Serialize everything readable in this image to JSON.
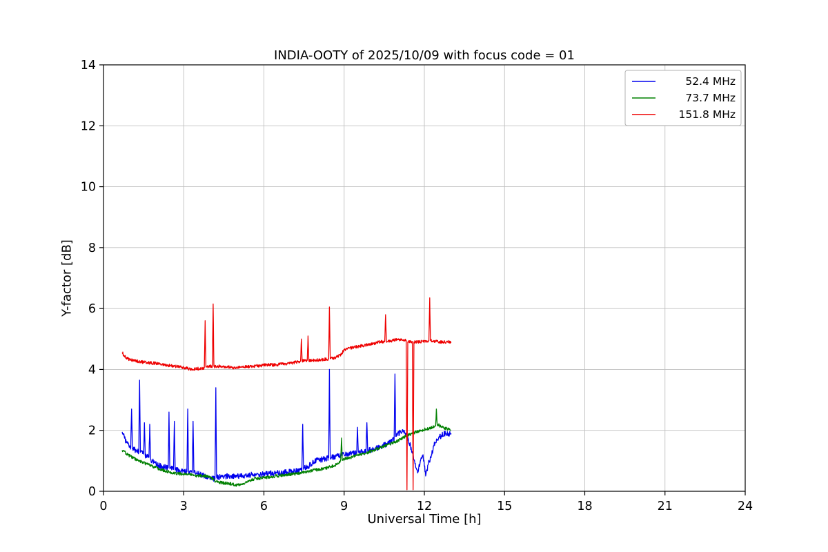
{
  "chart_data": {
    "type": "line",
    "title": "INDIA-OOTY of 2025/10/09 with focus code = 01",
    "xlabel": "Universal Time [h]",
    "ylabel": "Y-factor [dB]",
    "xlim": [
      0,
      24
    ],
    "ylim": [
      0,
      14
    ],
    "xticks": [
      0,
      3,
      6,
      9,
      12,
      15,
      18,
      21,
      24
    ],
    "yticks": [
      0,
      2,
      4,
      6,
      8,
      10,
      12,
      14
    ],
    "grid": true,
    "grid_color": "#c0c0c0",
    "axis_color": "#000000",
    "legend": {
      "position": "top-right",
      "border_color": "#b0b0b0",
      "background": "#ffffff"
    },
    "series": [
      {
        "name": "52.4 MHz",
        "color": "#0000ee",
        "noise": 0.09,
        "points": [
          [
            0.7,
            1.95
          ],
          [
            0.75,
            1.85
          ],
          [
            0.85,
            1.6
          ],
          [
            0.95,
            1.5
          ],
          [
            1.02,
            1.45
          ],
          [
            1.05,
            2.7
          ],
          [
            1.08,
            1.4
          ],
          [
            1.2,
            1.35
          ],
          [
            1.32,
            1.3
          ],
          [
            1.35,
            3.65
          ],
          [
            1.38,
            1.28
          ],
          [
            1.5,
            1.22
          ],
          [
            1.53,
            2.25
          ],
          [
            1.56,
            1.18
          ],
          [
            1.7,
            1.12
          ],
          [
            1.73,
            2.2
          ],
          [
            1.76,
            1.05
          ],
          [
            1.9,
            0.95
          ],
          [
            2.05,
            0.85
          ],
          [
            2.2,
            0.8
          ],
          [
            2.42,
            0.78
          ],
          [
            2.45,
            2.6
          ],
          [
            2.48,
            0.75
          ],
          [
            2.62,
            0.72
          ],
          [
            2.65,
            2.3
          ],
          [
            2.68,
            0.7
          ],
          [
            2.85,
            0.68
          ],
          [
            3.0,
            0.65
          ],
          [
            3.12,
            0.65
          ],
          [
            3.15,
            2.7
          ],
          [
            3.18,
            0.63
          ],
          [
            3.32,
            0.62
          ],
          [
            3.35,
            2.3
          ],
          [
            3.38,
            0.6
          ],
          [
            3.55,
            0.58
          ],
          [
            3.75,
            0.52
          ],
          [
            3.95,
            0.48
          ],
          [
            4.1,
            0.42
          ],
          [
            4.17,
            0.42
          ],
          [
            4.2,
            3.4
          ],
          [
            4.23,
            0.45
          ],
          [
            4.4,
            0.48
          ],
          [
            4.7,
            0.5
          ],
          [
            5.0,
            0.5
          ],
          [
            5.3,
            0.52
          ],
          [
            5.6,
            0.55
          ],
          [
            5.9,
            0.55
          ],
          [
            6.2,
            0.58
          ],
          [
            6.5,
            0.6
          ],
          [
            6.8,
            0.62
          ],
          [
            7.1,
            0.65
          ],
          [
            7.42,
            0.7
          ],
          [
            7.45,
            2.2
          ],
          [
            7.48,
            0.75
          ],
          [
            7.7,
            0.85
          ],
          [
            7.95,
            1.0
          ],
          [
            8.2,
            1.05
          ],
          [
            8.42,
            1.1
          ],
          [
            8.45,
            4.0
          ],
          [
            8.48,
            1.1
          ],
          [
            8.7,
            1.15
          ],
          [
            9.0,
            1.2
          ],
          [
            9.25,
            1.25
          ],
          [
            9.47,
            1.28
          ],
          [
            9.5,
            2.1
          ],
          [
            9.53,
            1.28
          ],
          [
            9.7,
            1.3
          ],
          [
            9.82,
            1.32
          ],
          [
            9.85,
            2.25
          ],
          [
            9.88,
            1.32
          ],
          [
            10.1,
            1.4
          ],
          [
            10.35,
            1.45
          ],
          [
            10.6,
            1.55
          ],
          [
            10.87,
            1.7
          ],
          [
            10.9,
            3.85
          ],
          [
            10.93,
            1.8
          ],
          [
            11.1,
            1.95
          ],
          [
            11.25,
            2.0
          ],
          [
            11.4,
            1.7
          ],
          [
            11.55,
            1.3
          ],
          [
            11.65,
            0.9
          ],
          [
            11.75,
            0.6
          ],
          [
            11.85,
            1.0
          ],
          [
            11.95,
            1.2
          ],
          [
            12.05,
            0.5
          ],
          [
            12.15,
            0.9
          ],
          [
            12.25,
            1.1
          ],
          [
            12.35,
            1.5
          ],
          [
            12.5,
            1.7
          ],
          [
            12.65,
            1.85
          ],
          [
            12.8,
            1.9
          ],
          [
            13.0,
            1.9
          ]
        ]
      },
      {
        "name": "73.7 MHz",
        "color": "#008000",
        "noise": 0.05,
        "points": [
          [
            0.7,
            1.35
          ],
          [
            0.9,
            1.2
          ],
          [
            1.1,
            1.1
          ],
          [
            1.35,
            1.0
          ],
          [
            1.6,
            0.9
          ],
          [
            1.9,
            0.8
          ],
          [
            2.2,
            0.7
          ],
          [
            2.5,
            0.62
          ],
          [
            2.8,
            0.58
          ],
          [
            3.1,
            0.55
          ],
          [
            3.4,
            0.52
          ],
          [
            3.7,
            0.5
          ],
          [
            4.0,
            0.48
          ],
          [
            4.2,
            0.32
          ],
          [
            4.45,
            0.28
          ],
          [
            4.7,
            0.25
          ],
          [
            5.0,
            0.2
          ],
          [
            5.2,
            0.22
          ],
          [
            5.45,
            0.35
          ],
          [
            5.7,
            0.42
          ],
          [
            6.0,
            0.45
          ],
          [
            6.3,
            0.48
          ],
          [
            6.6,
            0.52
          ],
          [
            6.9,
            0.55
          ],
          [
            7.2,
            0.58
          ],
          [
            7.5,
            0.62
          ],
          [
            7.8,
            0.68
          ],
          [
            8.1,
            0.72
          ],
          [
            8.4,
            0.78
          ],
          [
            8.65,
            0.85
          ],
          [
            8.87,
            1.0
          ],
          [
            8.9,
            1.75
          ],
          [
            8.93,
            1.05
          ],
          [
            9.2,
            1.1
          ],
          [
            9.5,
            1.18
          ],
          [
            9.8,
            1.25
          ],
          [
            10.1,
            1.35
          ],
          [
            10.4,
            1.45
          ],
          [
            10.7,
            1.55
          ],
          [
            11.0,
            1.65
          ],
          [
            11.3,
            1.8
          ],
          [
            11.6,
            1.92
          ],
          [
            11.9,
            2.0
          ],
          [
            12.1,
            2.05
          ],
          [
            12.3,
            2.1
          ],
          [
            12.42,
            2.15
          ],
          [
            12.45,
            2.7
          ],
          [
            12.48,
            2.2
          ],
          [
            12.7,
            2.1
          ],
          [
            12.85,
            2.05
          ],
          [
            13.0,
            2.0
          ]
        ]
      },
      {
        "name": "151.8 MHz",
        "color": "#ee0000",
        "noise": 0.05,
        "points": [
          [
            0.7,
            4.55
          ],
          [
            0.78,
            4.45
          ],
          [
            0.9,
            4.35
          ],
          [
            1.1,
            4.3
          ],
          [
            1.4,
            4.25
          ],
          [
            1.7,
            4.22
          ],
          [
            2.0,
            4.2
          ],
          [
            2.3,
            4.15
          ],
          [
            2.6,
            4.12
          ],
          [
            2.9,
            4.08
          ],
          [
            3.2,
            4.02
          ],
          [
            3.5,
            4.02
          ],
          [
            3.77,
            4.05
          ],
          [
            3.8,
            5.6
          ],
          [
            3.83,
            4.08
          ],
          [
            4.0,
            4.1
          ],
          [
            4.07,
            4.1
          ],
          [
            4.1,
            6.15
          ],
          [
            4.13,
            4.1
          ],
          [
            4.35,
            4.1
          ],
          [
            4.6,
            4.08
          ],
          [
            4.9,
            4.05
          ],
          [
            5.2,
            4.08
          ],
          [
            5.5,
            4.1
          ],
          [
            5.8,
            4.12
          ],
          [
            6.1,
            4.15
          ],
          [
            6.4,
            4.15
          ],
          [
            6.7,
            4.18
          ],
          [
            7.0,
            4.2
          ],
          [
            7.25,
            4.25
          ],
          [
            7.37,
            4.28
          ],
          [
            7.4,
            5.0
          ],
          [
            7.43,
            4.28
          ],
          [
            7.62,
            4.3
          ],
          [
            7.65,
            5.1
          ],
          [
            7.68,
            4.3
          ],
          [
            7.9,
            4.3
          ],
          [
            8.15,
            4.32
          ],
          [
            8.42,
            4.35
          ],
          [
            8.45,
            6.05
          ],
          [
            8.48,
            4.35
          ],
          [
            8.7,
            4.4
          ],
          [
            8.9,
            4.5
          ],
          [
            9.0,
            4.65
          ],
          [
            9.2,
            4.7
          ],
          [
            9.5,
            4.75
          ],
          [
            9.8,
            4.8
          ],
          [
            10.1,
            4.85
          ],
          [
            10.3,
            4.9
          ],
          [
            10.52,
            4.92
          ],
          [
            10.55,
            5.8
          ],
          [
            10.58,
            4.92
          ],
          [
            10.8,
            4.95
          ],
          [
            11.0,
            5.0
          ],
          [
            11.2,
            4.95
          ],
          [
            11.32,
            4.95
          ],
          [
            11.35,
            0.05
          ],
          [
            11.38,
            4.9
          ],
          [
            11.55,
            4.92
          ],
          [
            11.58,
            0.05
          ],
          [
            11.61,
            4.9
          ],
          [
            11.8,
            4.9
          ],
          [
            12.0,
            4.92
          ],
          [
            12.17,
            4.95
          ],
          [
            12.2,
            6.35
          ],
          [
            12.23,
            4.95
          ],
          [
            12.45,
            4.92
          ],
          [
            12.7,
            4.9
          ],
          [
            13.0,
            4.9
          ]
        ]
      }
    ]
  }
}
